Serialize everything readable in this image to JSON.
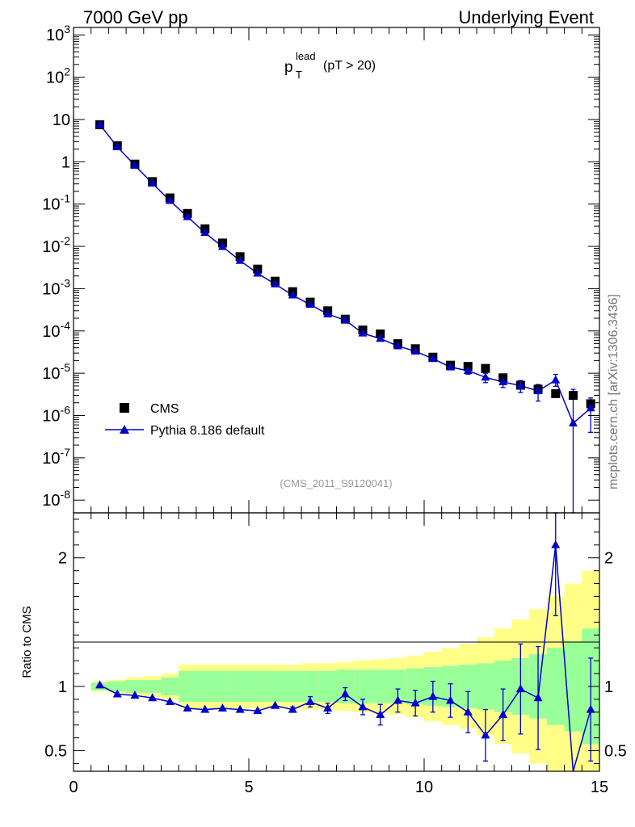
{
  "header": {
    "left": "7000 GeV pp",
    "right": "Underlying Event"
  },
  "annotation": {
    "main": "p",
    "sup": "lead",
    "sub": "T",
    "cut": "(pT > 20)"
  },
  "watermark": "(CMS_2011_S9120041)",
  "side_label": "mcplots.cern.ch [arXiv:1306.3436]",
  "legend": {
    "data_label": "CMS",
    "mc_label": "Pythia 8.186 default"
  },
  "colors": {
    "data": "#000000",
    "mc": "#0000cc",
    "band_inner": "#99ff99",
    "band_outer": "#ffff88"
  },
  "chart_data": [
    {
      "type": "scatter",
      "scale": "log-y",
      "xlim": [
        0,
        15
      ],
      "ylim": [
        5e-09,
        1500
      ],
      "ytick_labels": [
        "10^3",
        "10^2",
        "10",
        "1",
        "10^-1",
        "10^-2",
        "10^-3",
        "10^-4",
        "10^-5",
        "10^-6",
        "10^-7",
        "10^-8"
      ],
      "x": [
        0.75,
        1.25,
        1.75,
        2.25,
        2.75,
        3.25,
        3.75,
        4.25,
        4.75,
        5.25,
        5.75,
        6.25,
        6.75,
        7.25,
        7.75,
        8.25,
        8.75,
        9.25,
        9.75,
        10.25,
        10.75,
        11.25,
        11.75,
        12.25,
        12.75,
        13.25,
        13.75,
        14.25,
        14.75
      ],
      "series": [
        {
          "name": "CMS",
          "values": [
            7.5,
            2.4,
            0.88,
            0.34,
            0.14,
            0.06,
            0.026,
            0.012,
            0.0057,
            0.0029,
            0.0015,
            0.00085,
            0.00048,
            0.0003,
            0.00019,
            0.000105,
            8.5e-05,
            5e-05,
            3.8e-05,
            2.4e-05,
            1.55e-05,
            1.45e-05,
            1.3e-05,
            7.8e-06,
            5.2e-06,
            4.2e-06,
            3.3e-06,
            3e-06,
            1.9e-06
          ]
        },
        {
          "name": "Pythia 8.186 default",
          "values": [
            7.6,
            2.25,
            0.82,
            0.31,
            0.12,
            0.05,
            0.021,
            0.0098,
            0.0046,
            0.0023,
            0.00128,
            0.0007,
            0.00042,
            0.00025,
            0.00018,
            8.8e-05,
            6.6e-05,
            4.4e-05,
            3.3e-05,
            2.2e-05,
            1.4e-05,
            1.15e-05,
            8e-06,
            6.2e-06,
            5.1e-06,
            3.8e-06,
            6.9e-06,
            6.6e-07,
            1.5e-06
          ],
          "err_lo": [
            0,
            0,
            0,
            0,
            0,
            0,
            0,
            0,
            0,
            0,
            0,
            0,
            0,
            0,
            0,
            0,
            0,
            0,
            0,
            0,
            2e-06,
            2e-06,
            2e-06,
            1.6e-06,
            1.6e-06,
            1.6e-06,
            2e-06,
            6.595e-07,
            1.1e-06
          ],
          "err_hi": [
            0,
            0,
            0,
            0,
            0,
            0,
            0,
            0,
            0,
            0,
            0,
            0,
            0,
            0,
            0,
            0,
            0,
            0,
            0,
            0,
            2e-06,
            2e-06,
            2e-06,
            1.6e-06,
            1.6e-06,
            1.6e-06,
            2.5e-06,
            3.5e-06,
            1.1e-06
          ]
        }
      ],
      "legend_position": "bottom-left"
    },
    {
      "type": "scatter",
      "ylabel": "Ratio to CMS",
      "xlim": [
        0,
        15
      ],
      "ylim": [
        0.34,
        2.35
      ],
      "xticks": [
        0,
        5,
        10,
        15
      ],
      "yticks": [
        0.5,
        1,
        2
      ],
      "x": [
        0.75,
        1.25,
        1.75,
        2.25,
        2.75,
        3.25,
        3.75,
        4.25,
        4.75,
        5.25,
        5.75,
        6.25,
        6.75,
        7.25,
        7.75,
        8.25,
        8.75,
        9.25,
        9.75,
        10.25,
        10.75,
        11.25,
        11.75,
        12.25,
        12.75,
        13.25,
        13.75,
        14.25,
        14.75
      ],
      "ratio": [
        1.01,
        0.94,
        0.93,
        0.91,
        0.88,
        0.83,
        0.82,
        0.83,
        0.82,
        0.81,
        0.85,
        0.82,
        0.88,
        0.83,
        0.94,
        0.84,
        0.78,
        0.89,
        0.87,
        0.92,
        0.89,
        0.8,
        0.62,
        0.78,
        0.98,
        0.91,
        2.1,
        0.2,
        0.82
      ],
      "ratio_err": [
        0,
        0,
        0,
        0,
        0,
        0,
        0,
        0,
        0,
        0,
        0,
        0.02,
        0.04,
        0.04,
        0.05,
        0.06,
        0.08,
        0.09,
        0.1,
        0.12,
        0.13,
        0.16,
        0.2,
        0.2,
        0.35,
        0.4,
        0.55,
        0.0,
        0.4
      ],
      "band_edges": [
        0.5,
        1.0,
        1.5,
        2.0,
        2.5,
        3.0,
        3.5,
        4.0,
        4.5,
        5.0,
        5.5,
        6.0,
        6.5,
        7.0,
        7.5,
        8.0,
        8.5,
        9.0,
        9.5,
        10.0,
        10.5,
        11.0,
        11.5,
        12.0,
        12.5,
        13.0,
        13.5,
        14.0,
        14.5,
        15.0
      ],
      "band_inner": [
        0.03,
        0.04,
        0.05,
        0.05,
        0.07,
        0.12,
        0.12,
        0.12,
        0.12,
        0.12,
        0.12,
        0.12,
        0.12,
        0.12,
        0.13,
        0.13,
        0.13,
        0.13,
        0.14,
        0.15,
        0.16,
        0.17,
        0.18,
        0.2,
        0.22,
        0.25,
        0.3,
        0.35,
        0.45
      ],
      "band_outer": [
        0.04,
        0.05,
        0.07,
        0.08,
        0.1,
        0.17,
        0.17,
        0.17,
        0.17,
        0.17,
        0.17,
        0.17,
        0.18,
        0.18,
        0.19,
        0.2,
        0.21,
        0.22,
        0.24,
        0.27,
        0.3,
        0.33,
        0.38,
        0.45,
        0.52,
        0.6,
        0.7,
        0.8,
        0.9
      ]
    }
  ]
}
